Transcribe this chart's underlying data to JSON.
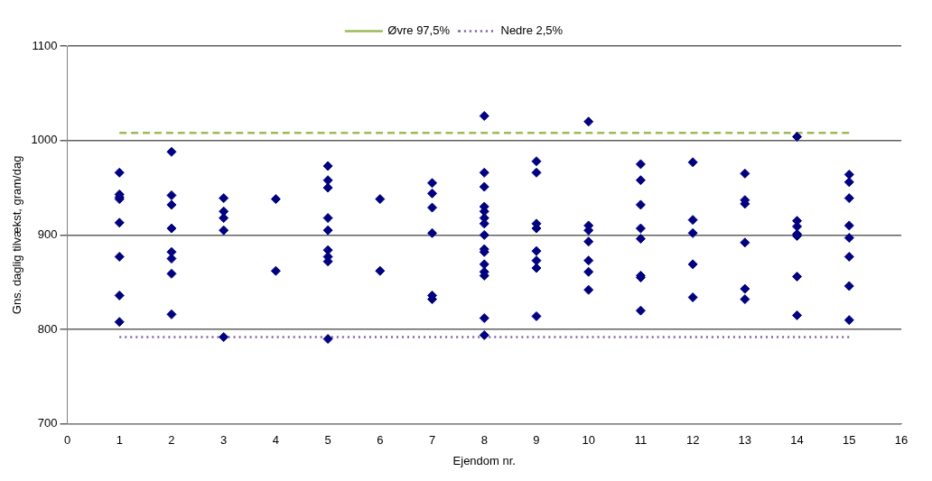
{
  "chart_data": {
    "type": "scatter",
    "xlabel": "Ejendom nr.",
    "ylabel": "Gns. daglig tilvækst, gram/dag",
    "xlim": [
      0,
      16
    ],
    "xticks": [
      0,
      1,
      2,
      3,
      4,
      5,
      6,
      7,
      8,
      9,
      10,
      11,
      12,
      13,
      14,
      15,
      16
    ],
    "ylim": [
      700,
      1100
    ],
    "yticks": [
      700,
      800,
      900,
      1000,
      1100
    ],
    "grid": "y",
    "legend": "top",
    "marker": "diamond",
    "series": [
      {
        "color": "#000080",
        "x": [
          1,
          1,
          1,
          1,
          1,
          1,
          1,
          1,
          2,
          2,
          2,
          2,
          2,
          2,
          2,
          2,
          3,
          3,
          3,
          3,
          3,
          4,
          4,
          5,
          5,
          5,
          5,
          5,
          5,
          5,
          5,
          5,
          6,
          6,
          7,
          7,
          7,
          7,
          7,
          7,
          8,
          8,
          8,
          8,
          8,
          8,
          8,
          8,
          8,
          8,
          8,
          8,
          8,
          8,
          8,
          9,
          9,
          9,
          9,
          9,
          9,
          9,
          9,
          10,
          10,
          10,
          10,
          10,
          10,
          10,
          11,
          11,
          11,
          11,
          11,
          11,
          11,
          11,
          12,
          12,
          12,
          12,
          12,
          13,
          13,
          13,
          13,
          13,
          13,
          14,
          14,
          14,
          14,
          14,
          14,
          14,
          15,
          15,
          15,
          15,
          15,
          15,
          15,
          15
        ],
        "values": [
          966,
          943,
          940,
          938,
          913,
          877,
          836,
          808,
          988,
          942,
          932,
          907,
          882,
          875,
          859,
          816,
          939,
          925,
          918,
          905,
          792,
          938,
          862,
          973,
          958,
          950,
          918,
          905,
          884,
          877,
          872,
          790,
          938,
          862,
          955,
          944,
          929,
          902,
          836,
          832,
          1026,
          966,
          951,
          930,
          925,
          918,
          912,
          900,
          885,
          882,
          869,
          861,
          857,
          812,
          794,
          978,
          966,
          912,
          907,
          883,
          873,
          865,
          814,
          1020,
          910,
          905,
          893,
          873,
          861,
          842,
          975,
          958,
          932,
          907,
          896,
          857,
          855,
          820,
          977,
          916,
          902,
          869,
          834,
          965,
          937,
          933,
          892,
          843,
          832,
          1004,
          915,
          909,
          901,
          899,
          856,
          815,
          964,
          956,
          939,
          910,
          897,
          877,
          846,
          810
        ]
      },
      {
        "type": "line",
        "name": "Øvre 97,5%",
        "color": "#9bbb59",
        "line_style": "dashed",
        "marker": "none",
        "x": [
          1,
          15
        ],
        "values": [
          1008,
          1008
        ]
      },
      {
        "type": "line",
        "name": "Nedre 2,5%",
        "color": "#8064a2",
        "line_style": "dotted",
        "marker": "none",
        "x": [
          1,
          15
        ],
        "values": [
          792,
          792
        ]
      }
    ]
  }
}
